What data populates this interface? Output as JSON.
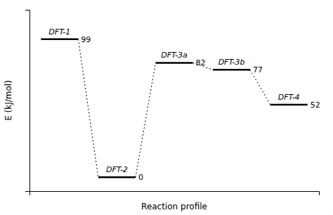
{
  "chart_data": {
    "type": "energy_levels",
    "xlabel": "Reaction profile",
    "ylabel": "E (kJ/mol)",
    "categories": [
      null,
      null,
      null,
      null,
      null
    ],
    "values": [
      99,
      0,
      82,
      77,
      52
    ],
    "color": "black",
    "data_labels": true,
    "tick_labels": false,
    "ylim": [
      -10,
      120
    ],
    "annotations": [
      "DFT-1",
      "DFT-2",
      "DFT-3a",
      "DFT-3b",
      "DFT-4"
    ]
  }
}
